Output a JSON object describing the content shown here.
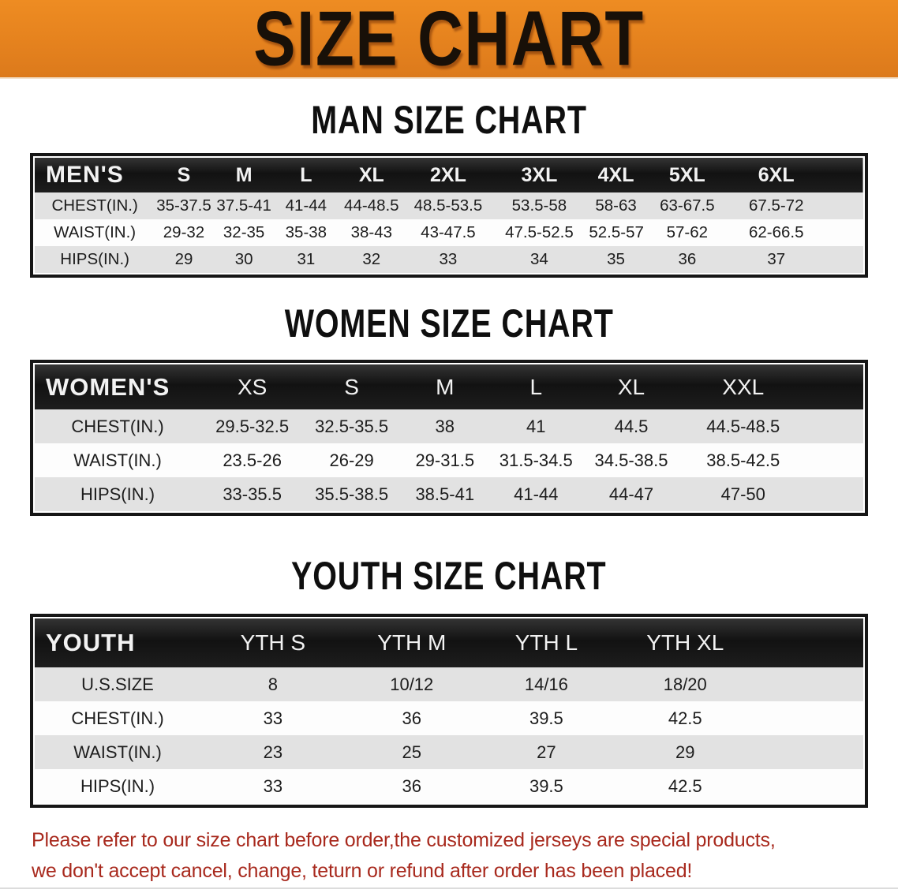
{
  "banner": {
    "title": "SIZE CHART",
    "bg_color": "#e5821e",
    "text_color": "#181008"
  },
  "sections": [
    {
      "id": "mens",
      "heading": "MAN SIZE CHART",
      "table": {
        "header_label": "MEN'S",
        "columns": [
          "S",
          "M",
          "L",
          "XL",
          "2XL",
          "3XL",
          "4XL",
          "5XL",
          "6XL"
        ],
        "rows": [
          {
            "label": "CHEST(IN.)",
            "values": [
              "35-37.5",
              "37.5-41",
              "41-44",
              "44-48.5",
              "48.5-53.5",
              "53.5-58",
              "58-63",
              "63-67.5",
              "67.5-72"
            ]
          },
          {
            "label": "WAIST(IN.)",
            "values": [
              "29-32",
              "32-35",
              "35-38",
              "38-43",
              "43-47.5",
              "47.5-52.5",
              "52.5-57",
              "57-62",
              "62-66.5"
            ]
          },
          {
            "label": "HIPS(IN.)",
            "values": [
              "29",
              "30",
              "31",
              "32",
              "33",
              "34",
              "35",
              "36",
              "37"
            ]
          }
        ]
      }
    },
    {
      "id": "womens",
      "heading": "WOMEN SIZE CHART",
      "table": {
        "header_label": "WOMEN'S",
        "columns": [
          "XS",
          "S",
          "M",
          "L",
          "XL",
          "XXL"
        ],
        "rows": [
          {
            "label": "CHEST(IN.)",
            "values": [
              "29.5-32.5",
              "32.5-35.5",
              "38",
              "41",
              "44.5",
              "44.5-48.5"
            ]
          },
          {
            "label": "WAIST(IN.)",
            "values": [
              "23.5-26",
              "26-29",
              "29-31.5",
              "31.5-34.5",
              "34.5-38.5",
              "38.5-42.5"
            ]
          },
          {
            "label": "HIPS(IN.)",
            "values": [
              "33-35.5",
              "35.5-38.5",
              "38.5-41",
              "41-44",
              "44-47",
              "47-50"
            ]
          }
        ]
      }
    },
    {
      "id": "youth",
      "heading": "YOUTH SIZE CHART",
      "table": {
        "header_label": "YOUTH",
        "columns": [
          "YTH S",
          "YTH M",
          "YTH L",
          "YTH XL"
        ],
        "rows": [
          {
            "label": "U.S.SIZE",
            "values": [
              "8",
              "10/12",
              "14/16",
              "18/20"
            ]
          },
          {
            "label": "CHEST(IN.)",
            "values": [
              "33",
              "36",
              "39.5",
              "42.5"
            ]
          },
          {
            "label": "WAIST(IN.)",
            "values": [
              "23",
              "25",
              "27",
              "29"
            ]
          },
          {
            "label": "HIPS(IN.)",
            "values": [
              "33",
              "36",
              "39.5",
              "42.5"
            ]
          }
        ]
      }
    }
  ],
  "disclaimer": {
    "lines": [
      "Please refer to our size chart before order,the customized jerseys are special products,",
      "we don't accept cancel, change, teturn or refund after order has been placed!"
    ],
    "text_color": "#a8291d"
  },
  "colors": {
    "header_bar_bg": "#171717",
    "row_stripe": "#e2e2e2",
    "row_plain": "#fdfdfd",
    "table_border": "#161616"
  }
}
